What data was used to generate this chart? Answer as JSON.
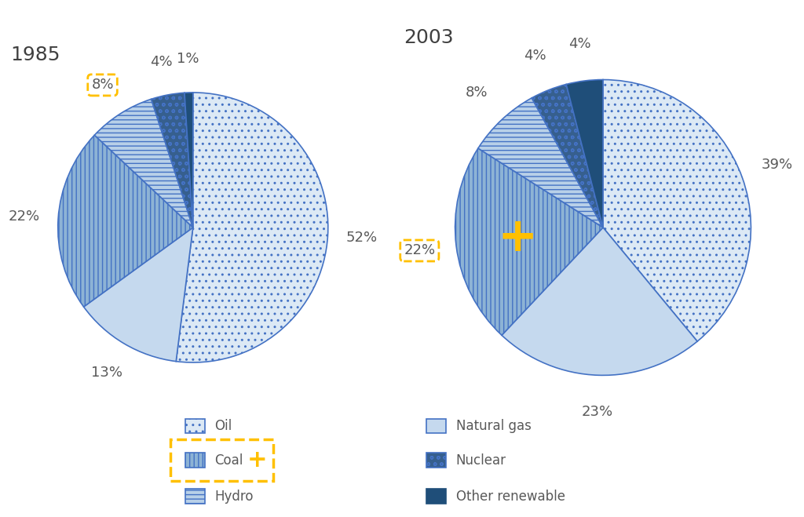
{
  "title_1985": "1985",
  "title_2003": "2003",
  "pie1": {
    "labels": [
      "Oil",
      "Natural gas",
      "Coal",
      "Hydro",
      "Nuclear",
      "Other renewable"
    ],
    "values": [
      52,
      13,
      22,
      8,
      4,
      1
    ],
    "pct_labels": [
      "52%",
      "13%",
      "22%",
      "8%",
      "4%",
      "1%"
    ],
    "colors": [
      "#dce9f5",
      "#c5d9ee",
      "#8db3d5",
      "#b8d0e8",
      "#365f8e",
      "#1f4e79"
    ],
    "hatches": [
      "..",
      "",
      "|||",
      "---",
      "oo",
      ""
    ],
    "startangle": 90
  },
  "pie2": {
    "labels": [
      "Oil",
      "Natural gas",
      "Coal",
      "Hydro",
      "Nuclear",
      "Other renewable"
    ],
    "values": [
      39,
      23,
      22,
      8,
      4,
      4
    ],
    "pct_labels": [
      "39%",
      "23%",
      "22%",
      "8%",
      "4%",
      "4%"
    ],
    "colors": [
      "#dce9f5",
      "#c5d9ee",
      "#8db3d5",
      "#b8d0e8",
      "#365f8e",
      "#1f4e79"
    ],
    "hatches": [
      "..",
      "",
      "|||",
      "---",
      "oo",
      ""
    ],
    "startangle": 90
  },
  "edge_color": "#4472c4",
  "plus_color": "#FFC000",
  "dash_box_color": "#FFC000",
  "background_color": "#ffffff",
  "label_fontsize": 13,
  "title_fontsize": 18,
  "text_color": "#595959",
  "legend_items": [
    {
      "label": "Oil",
      "color": "#dce9f5",
      "hatch": "..",
      "edgecolor": "#4472c4"
    },
    {
      "label": "Coal",
      "color": "#8db3d5",
      "hatch": "|||",
      "edgecolor": "#4472c4"
    },
    {
      "label": "Hydro",
      "color": "#b8d0e8",
      "hatch": "---",
      "edgecolor": "#4472c4"
    },
    {
      "label": "Natural gas",
      "color": "#c5d9ee",
      "hatch": "",
      "edgecolor": "#4472c4"
    },
    {
      "label": "Nuclear",
      "color": "#365f8e",
      "hatch": "oo",
      "edgecolor": "#4472c4"
    },
    {
      "label": "Other renewable",
      "color": "#1f4e79",
      "hatch": "",
      "edgecolor": "#1f4e79"
    }
  ]
}
